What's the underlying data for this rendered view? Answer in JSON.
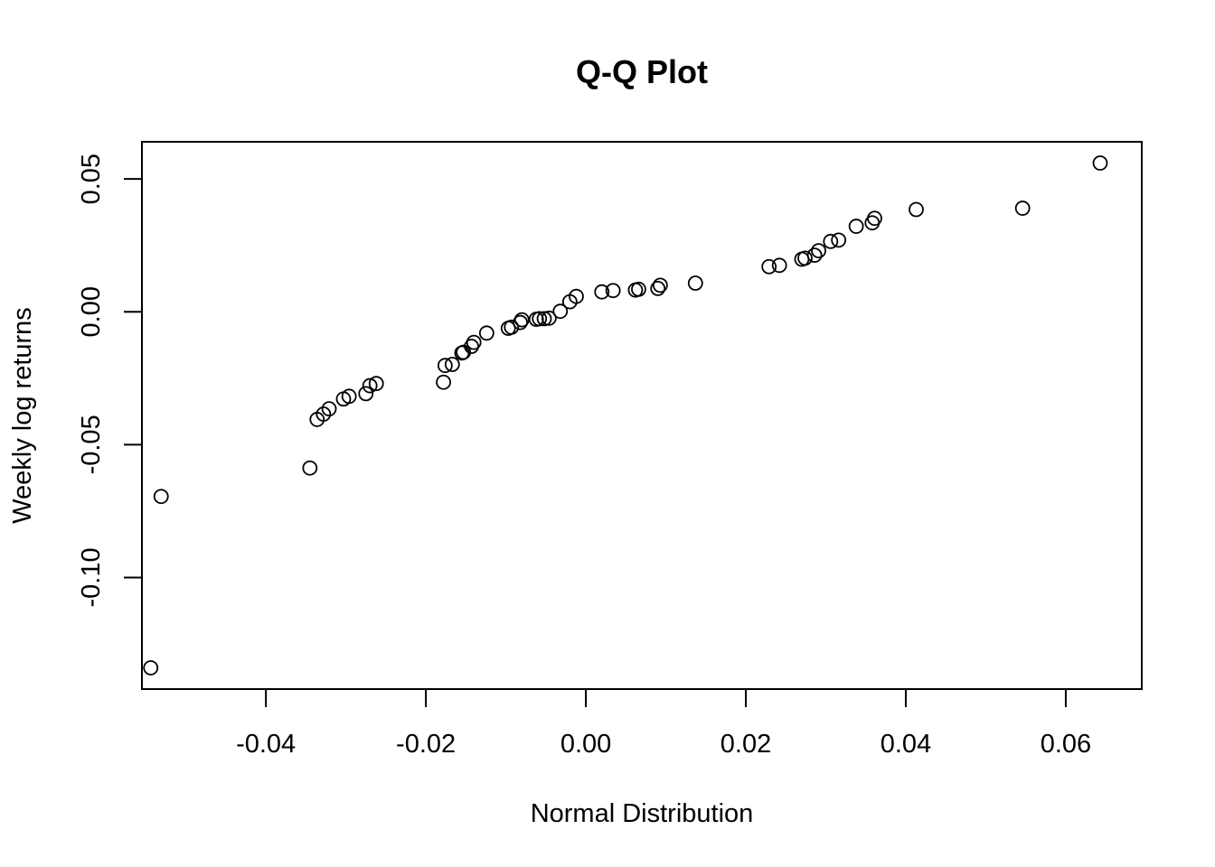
{
  "chart_data": {
    "type": "scatter",
    "title": "Q-Q Plot",
    "xlabel": "Normal Distribution",
    "ylabel": "Weekly log returns",
    "xlim": [
      -0.0555,
      0.0695
    ],
    "ylim": [
      -0.142,
      0.064
    ],
    "x_ticks": [
      -0.04,
      -0.02,
      0.0,
      0.02,
      0.04,
      0.06
    ],
    "x_tick_labels": [
      "-0.04",
      "-0.02",
      "0.00",
      "0.02",
      "0.04",
      "0.06"
    ],
    "y_ticks": [
      -0.1,
      -0.05,
      0.0,
      0.05
    ],
    "y_tick_labels": [
      "-0.10",
      "-0.05",
      "0.00",
      "0.05"
    ],
    "grid": false,
    "legend": "none",
    "marker": "open-circle",
    "color": "#000000",
    "points": [
      [
        -0.0544,
        -0.134
      ],
      [
        -0.0531,
        -0.0695
      ],
      [
        -0.0345,
        -0.0588
      ],
      [
        -0.0336,
        -0.0405
      ],
      [
        -0.0328,
        -0.0385
      ],
      [
        -0.0321,
        -0.0365
      ],
      [
        -0.0303,
        -0.0328
      ],
      [
        -0.0296,
        -0.0318
      ],
      [
        -0.0275,
        -0.0308
      ],
      [
        -0.027,
        -0.0278
      ],
      [
        -0.0262,
        -0.027
      ],
      [
        -0.0178,
        -0.0265
      ],
      [
        -0.0176,
        -0.0202
      ],
      [
        -0.0167,
        -0.0198
      ],
      [
        -0.0155,
        -0.0155
      ],
      [
        -0.0153,
        -0.0152
      ],
      [
        -0.0143,
        -0.013
      ],
      [
        -0.014,
        -0.0115
      ],
      [
        -0.0124,
        -0.008
      ],
      [
        -0.0097,
        -0.0062
      ],
      [
        -0.0093,
        -0.0058
      ],
      [
        -0.0082,
        -0.004
      ],
      [
        -0.008,
        -0.003
      ],
      [
        -0.0062,
        -0.0028
      ],
      [
        -0.0058,
        -0.0026
      ],
      [
        -0.0052,
        -0.0026
      ],
      [
        -0.0046,
        -0.0024
      ],
      [
        -0.0032,
        0.0002
      ],
      [
        -0.002,
        0.0038
      ],
      [
        -0.0012,
        0.0058
      ],
      [
        0.002,
        0.0075
      ],
      [
        0.0034,
        0.008
      ],
      [
        0.0062,
        0.0082
      ],
      [
        0.0066,
        0.0085
      ],
      [
        0.009,
        0.0088
      ],
      [
        0.0093,
        0.01
      ],
      [
        0.0137,
        0.0108
      ],
      [
        0.0229,
        0.017
      ],
      [
        0.0242,
        0.0175
      ],
      [
        0.027,
        0.0198
      ],
      [
        0.0274,
        0.0202
      ],
      [
        0.0286,
        0.0213
      ],
      [
        0.0291,
        0.023
      ],
      [
        0.0306,
        0.0265
      ],
      [
        0.0316,
        0.027
      ],
      [
        0.0338,
        0.0322
      ],
      [
        0.0358,
        0.0335
      ],
      [
        0.0361,
        0.0352
      ],
      [
        0.0413,
        0.0385
      ],
      [
        0.0546,
        0.039
      ],
      [
        0.0643,
        0.056
      ]
    ]
  }
}
